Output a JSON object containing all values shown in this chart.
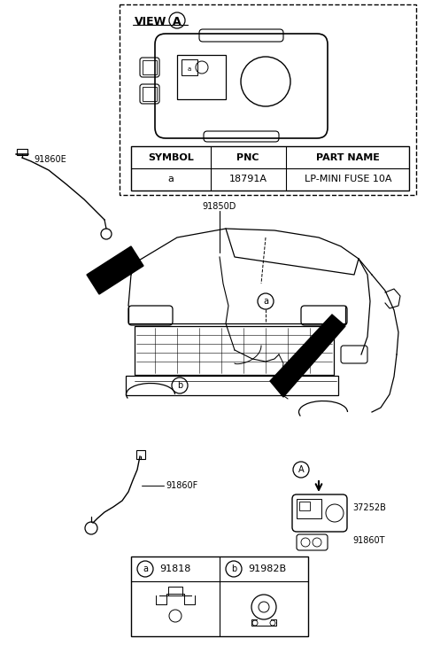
{
  "bg_color": "#ffffff",
  "line_color": "#000000",
  "view_label": "VIEW",
  "circle_label": "A",
  "table_headers": [
    "SYMBOL",
    "PNC",
    "PART NAME"
  ],
  "table_row": [
    "a",
    "18791A",
    "LP-MINI FUSE 10A"
  ],
  "label_91860E": "91860E",
  "label_91850D": "91850D",
  "label_91860F": "91860F",
  "label_37252B": "37252B",
  "label_91860T": "91860T",
  "label_a": "a",
  "label_b": "b",
  "label_A": "A",
  "label_91818": "91818",
  "label_91982B": "91982B",
  "font_size_small": 7,
  "font_size_med": 8,
  "font_size_large": 9
}
